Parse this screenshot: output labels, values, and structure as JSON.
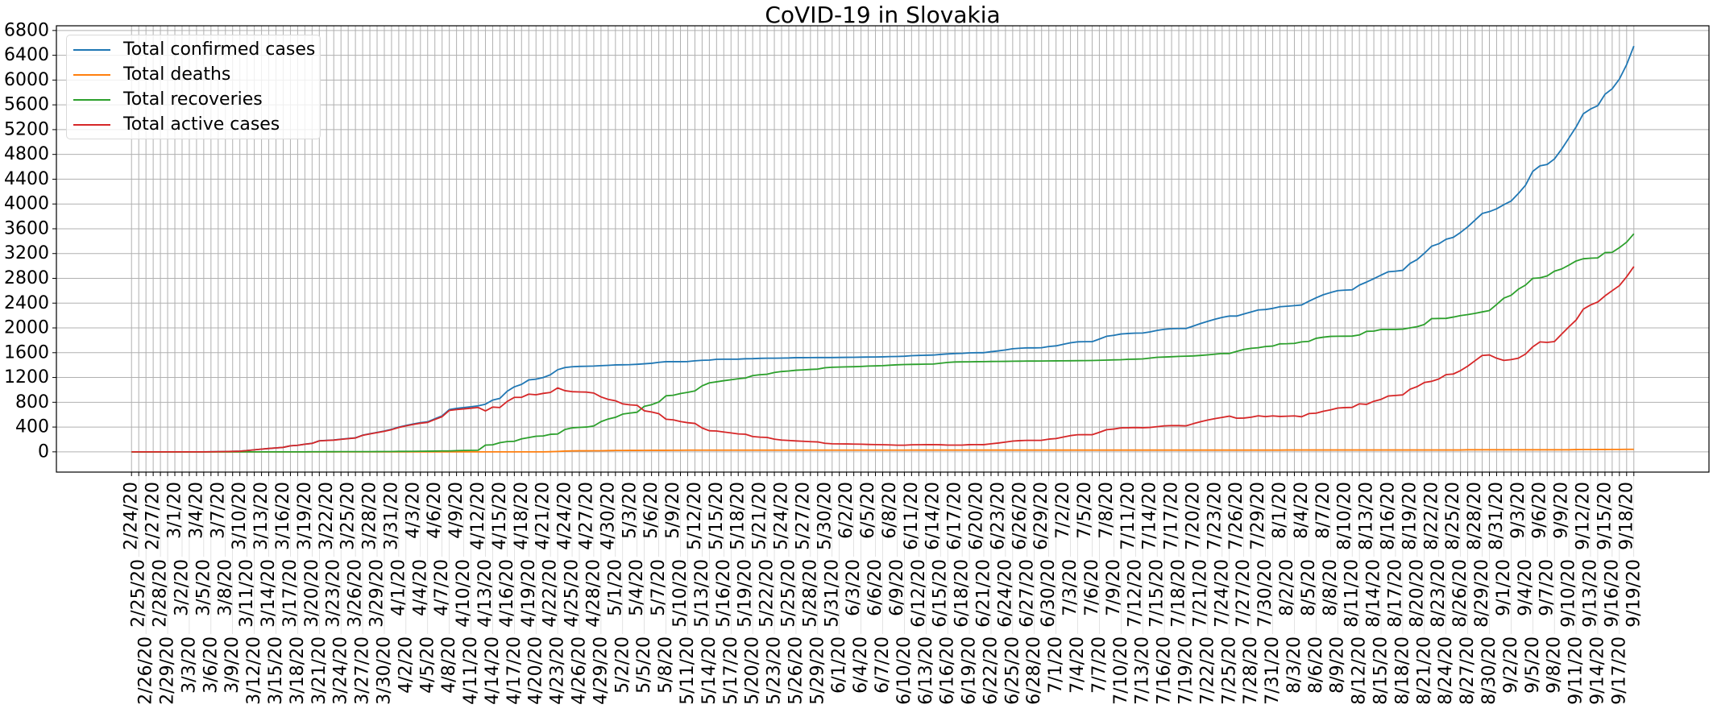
{
  "chart_data": {
    "type": "line",
    "title": "CoVID-19 in Slovakia",
    "xlabel": "",
    "ylabel": "",
    "ylim": [
      -327,
      6876
    ],
    "yticks": [
      0,
      400,
      800,
      1200,
      1600,
      2000,
      2400,
      2800,
      3200,
      3600,
      4000,
      4400,
      4800,
      5200,
      5600,
      6000,
      6400,
      6800
    ],
    "grid": true,
    "legend_position": "top-left",
    "categories": [
      "2/24/20",
      "2/25/20",
      "2/26/20",
      "2/27/20",
      "2/28/20",
      "2/29/20",
      "3/1/20",
      "3/2/20",
      "3/3/20",
      "3/4/20",
      "3/5/20",
      "3/6/20",
      "3/7/20",
      "3/8/20",
      "3/9/20",
      "3/10/20",
      "3/11/20",
      "3/12/20",
      "3/13/20",
      "3/14/20",
      "3/15/20",
      "3/16/20",
      "3/17/20",
      "3/18/20",
      "3/19/20",
      "3/20/20",
      "3/21/20",
      "3/22/20",
      "3/23/20",
      "3/24/20",
      "3/25/20",
      "3/26/20",
      "3/27/20",
      "3/28/20",
      "3/29/20",
      "3/30/20",
      "3/31/20",
      "4/1/20",
      "4/2/20",
      "4/3/20",
      "4/4/20",
      "4/5/20",
      "4/6/20",
      "4/7/20",
      "4/8/20",
      "4/9/20",
      "4/10/20",
      "4/11/20",
      "4/12/20",
      "4/13/20",
      "4/14/20",
      "4/15/20",
      "4/16/20",
      "4/17/20",
      "4/18/20",
      "4/19/20",
      "4/20/20",
      "4/21/20",
      "4/22/20",
      "4/23/20",
      "4/24/20",
      "4/25/20",
      "4/26/20",
      "4/27/20",
      "4/28/20",
      "4/29/20",
      "4/30/20",
      "5/1/20",
      "5/2/20",
      "5/3/20",
      "5/4/20",
      "5/5/20",
      "5/6/20",
      "5/7/20",
      "5/8/20",
      "5/9/20",
      "5/10/20",
      "5/11/20",
      "5/12/20",
      "5/13/20",
      "5/14/20",
      "5/15/20",
      "5/16/20",
      "5/17/20",
      "5/18/20",
      "5/19/20",
      "5/20/20",
      "5/21/20",
      "5/22/20",
      "5/23/20",
      "5/24/20",
      "5/25/20",
      "5/26/20",
      "5/27/20",
      "5/28/20",
      "5/29/20",
      "5/30/20",
      "5/31/20",
      "6/1/20",
      "6/2/20",
      "6/3/20",
      "6/4/20",
      "6/5/20",
      "6/6/20",
      "6/7/20",
      "6/8/20",
      "6/9/20",
      "6/10/20",
      "6/11/20",
      "6/12/20",
      "6/13/20",
      "6/14/20",
      "6/15/20",
      "6/16/20",
      "6/17/20",
      "6/18/20",
      "6/19/20",
      "6/20/20",
      "6/21/20",
      "6/22/20",
      "6/23/20",
      "6/24/20",
      "6/25/20",
      "6/26/20",
      "6/27/20",
      "6/28/20",
      "6/29/20",
      "6/30/20",
      "7/1/20",
      "7/2/20",
      "7/3/20",
      "7/4/20",
      "7/5/20",
      "7/6/20",
      "7/7/20",
      "7/8/20",
      "7/9/20",
      "7/10/20",
      "7/11/20",
      "7/12/20",
      "7/13/20",
      "7/14/20",
      "7/15/20",
      "7/16/20",
      "7/17/20",
      "7/18/20",
      "7/19/20",
      "7/20/20",
      "7/21/20",
      "7/22/20",
      "7/23/20",
      "7/24/20",
      "7/25/20",
      "7/26/20",
      "7/27/20",
      "7/28/20",
      "7/29/20",
      "7/30/20",
      "7/31/20",
      "8/1/20",
      "8/2/20",
      "8/3/20",
      "8/4/20",
      "8/5/20",
      "8/6/20",
      "8/7/20",
      "8/8/20",
      "8/9/20",
      "8/10/20",
      "8/11/20",
      "8/12/20",
      "8/13/20",
      "8/14/20",
      "8/15/20",
      "8/16/20",
      "8/17/20",
      "8/18/20",
      "8/19/20",
      "8/20/20",
      "8/21/20",
      "8/22/20",
      "8/23/20",
      "8/24/20",
      "8/25/20",
      "8/26/20",
      "8/27/20",
      "8/28/20",
      "8/29/20",
      "8/30/20",
      "8/31/20",
      "9/1/20",
      "9/2/20",
      "9/3/20",
      "9/4/20",
      "9/5/20",
      "9/6/20",
      "9/7/20",
      "9/8/20",
      "9/9/20",
      "9/10/20",
      "9/11/20",
      "9/12/20",
      "9/13/20",
      "9/14/20",
      "9/15/20",
      "9/16/20",
      "9/17/20",
      "9/18/20",
      "9/19/20"
    ],
    "series": [
      {
        "name": "Total confirmed cases",
        "color": "#1f77b4",
        "values": [
          0,
          0,
          0,
          0,
          0,
          0,
          0,
          0,
          0,
          0,
          0,
          1,
          3,
          5,
          7,
          10,
          21,
          32,
          44,
          54,
          63,
          72,
          97,
          105,
          123,
          137,
          178,
          185,
          191,
          204,
          216,
          226,
          269,
          292,
          314,
          336,
          363,
          400,
          426,
          450,
          471,
          485,
          534,
          581,
          682,
          701,
          715,
          728,
          742,
          769,
          835,
          863,
          977,
          1049,
          1089,
          1161,
          1173,
          1199,
          1244,
          1325,
          1360,
          1373,
          1379,
          1381,
          1384,
          1391,
          1396,
          1403,
          1405,
          1407,
          1413,
          1421,
          1429,
          1445,
          1455,
          1455,
          1455,
          1457,
          1469,
          1477,
          1480,
          1493,
          1495,
          1495,
          1496,
          1502,
          1504,
          1509,
          1511,
          1511,
          1513,
          1515,
          1520,
          1520,
          1521,
          1522,
          1522,
          1522,
          1523,
          1525,
          1526,
          1528,
          1530,
          1531,
          1533,
          1537,
          1539,
          1543,
          1552,
          1556,
          1559,
          1562,
          1572,
          1580,
          1587,
          1589,
          1597,
          1600,
          1600,
          1616,
          1629,
          1645,
          1664,
          1672,
          1678,
          1678,
          1680,
          1700,
          1710,
          1736,
          1760,
          1775,
          1778,
          1778,
          1820,
          1865,
          1880,
          1902,
          1910,
          1916,
          1917,
          1935,
          1960,
          1977,
          1987,
          1991,
          1991,
          2030,
          2070,
          2106,
          2140,
          2170,
          2191,
          2191,
          2225,
          2257,
          2290,
          2297,
          2315,
          2342,
          2350,
          2360,
          2370,
          2430,
          2486,
          2535,
          2570,
          2602,
          2610,
          2615,
          2691,
          2740,
          2794,
          2852,
          2906,
          2915,
          2929,
          3040,
          3103,
          3205,
          3318,
          3358,
          3430,
          3461,
          3540,
          3631,
          3738,
          3846,
          3877,
          3922,
          3989,
          4047,
          4168,
          4302,
          4526,
          4615,
          4638,
          4727,
          4884,
          5063,
          5242,
          5456,
          5532,
          5586,
          5770,
          5859,
          6016,
          6249,
          6549
        ]
      },
      {
        "name": "Total deaths",
        "color": "#ff7f0e",
        "values": [
          0,
          0,
          0,
          0,
          0,
          0,
          0,
          0,
          0,
          0,
          0,
          0,
          0,
          0,
          0,
          0,
          0,
          0,
          0,
          0,
          0,
          0,
          0,
          0,
          0,
          0,
          0,
          0,
          0,
          0,
          0,
          0,
          0,
          0,
          0,
          0,
          0,
          0,
          0,
          0,
          0,
          0,
          0,
          0,
          0,
          0,
          0,
          0,
          0,
          0,
          0,
          0,
          0,
          0,
          0,
          0,
          0,
          0,
          2,
          6,
          12,
          15,
          17,
          17,
          18,
          18,
          20,
          22,
          22,
          23,
          23,
          24,
          25,
          25,
          25,
          26,
          26,
          27,
          27,
          27,
          27,
          27,
          27,
          27,
          27,
          27,
          27,
          27,
          27,
          27,
          27,
          27,
          27,
          27,
          27,
          27,
          27,
          27,
          27,
          27,
          27,
          27,
          27,
          27,
          27,
          27,
          27,
          27,
          28,
          28,
          28,
          28,
          28,
          28,
          28,
          28,
          28,
          28,
          28,
          28,
          28,
          28,
          28,
          28,
          28,
          28,
          28,
          28,
          28,
          28,
          28,
          28,
          28,
          28,
          28,
          28,
          28,
          28,
          28,
          28,
          28,
          28,
          28,
          28,
          28,
          28,
          28,
          28,
          28,
          28,
          28,
          28,
          28,
          28,
          28,
          28,
          28,
          28,
          28,
          28,
          30,
          30,
          30,
          30,
          30,
          30,
          30,
          30,
          30,
          30,
          30,
          30,
          30,
          30,
          30,
          30,
          30,
          30,
          30,
          30,
          30,
          30,
          30,
          30,
          30,
          33,
          33,
          33,
          33,
          33,
          33,
          33,
          33,
          33,
          33,
          33,
          33,
          33,
          33,
          33,
          36,
          37,
          37,
          38,
          38,
          39,
          39,
          40,
          40
        ]
      },
      {
        "name": "Total recoveries",
        "color": "#2ca02c",
        "values": [
          0,
          0,
          0,
          0,
          0,
          0,
          0,
          0,
          0,
          0,
          0,
          0,
          0,
          0,
          0,
          0,
          0,
          0,
          0,
          0,
          0,
          0,
          0,
          0,
          0,
          1,
          1,
          2,
          2,
          3,
          3,
          3,
          3,
          3,
          4,
          5,
          5,
          7,
          7,
          8,
          9,
          10,
          12,
          14,
          14,
          19,
          22,
          24,
          26,
          109,
          113,
          148,
          165,
          170,
          209,
          230,
          252,
          256,
          283,
          287,
          361,
          387,
          395,
          400,
          417,
          487,
          530,
          557,
          609,
          625,
          639,
          735,
          761,
          804,
          904,
          913,
          940,
          960,
          983,
          1065,
          1113,
          1130,
          1148,
          1163,
          1180,
          1191,
          1230,
          1245,
          1252,
          1280,
          1296,
          1305,
          1317,
          1323,
          1330,
          1335,
          1357,
          1365,
          1368,
          1371,
          1374,
          1378,
          1384,
          1387,
          1391,
          1398,
          1405,
          1409,
          1411,
          1413,
          1415,
          1417,
          1430,
          1443,
          1450,
          1452,
          1453,
          1455,
          1456,
          1458,
          1459,
          1460,
          1462,
          1463,
          1465,
          1465,
          1466,
          1467,
          1468,
          1469,
          1470,
          1471,
          1472,
          1474,
          1477,
          1480,
          1484,
          1487,
          1493,
          1496,
          1500,
          1513,
          1526,
          1530,
          1535,
          1540,
          1544,
          1548,
          1556,
          1565,
          1576,
          1587,
          1587,
          1620,
          1652,
          1670,
          1680,
          1700,
          1707,
          1743,
          1745,
          1750,
          1774,
          1783,
          1832,
          1850,
          1863,
          1865,
          1866,
          1868,
          1886,
          1944,
          1948,
          1975,
          1975,
          1975,
          1980,
          2000,
          2020,
          2056,
          2150,
          2152,
          2154,
          2175,
          2199,
          2215,
          2235,
          2258,
          2280,
          2378,
          2481,
          2526,
          2624,
          2691,
          2799,
          2808,
          2839,
          2915,
          2951,
          3013,
          3080,
          3116,
          3125,
          3130,
          3215,
          3219,
          3295,
          3384,
          3519
        ]
      },
      {
        "name": "Total active cases",
        "color": "#d62728",
        "values": [
          0,
          0,
          0,
          0,
          0,
          0,
          0,
          0,
          0,
          0,
          0,
          1,
          3,
          5,
          7,
          10,
          21,
          32,
          44,
          54,
          63,
          72,
          97,
          105,
          123,
          136,
          177,
          183,
          189,
          201,
          213,
          223,
          266,
          289,
          310,
          331,
          358,
          393,
          419,
          442,
          462,
          475,
          522,
          567,
          668,
          682,
          693,
          704,
          716,
          660,
          722,
          715,
          812,
          879,
          880,
          931,
          921,
          943,
          959,
          1032,
          987,
          971,
          967,
          964,
          949,
          886,
          846,
          824,
          774,
          759,
          751,
          662,
          643,
          616,
          526,
          516,
          489,
          470,
          459,
          385,
          340,
          336,
          320,
          305,
          289,
          284,
          247,
          237,
          232,
          204,
          190,
          183,
          176,
          170,
          164,
          160,
          138,
          130,
          128,
          127,
          125,
          123,
          119,
          117,
          115,
          112,
          107,
          107,
          113,
          115,
          116,
          117,
          114,
          109,
          109,
          109,
          116,
          117,
          116,
          130,
          142,
          157,
          174,
          181,
          185,
          185,
          186,
          205,
          214,
          239,
          262,
          276,
          278,
          276,
          315,
          357,
          368,
          387,
          389,
          392,
          389,
          394,
          406,
          419,
          424,
          423,
          419,
          454,
          486,
          513,
          536,
          555,
          576,
          543,
          545,
          559,
          582,
          569,
          580,
          571,
          575,
          580,
          566,
          617,
          624,
          655,
          677,
          707,
          714,
          717,
          775,
          766,
          816,
          847,
          901,
          910,
          919,
          1010,
          1053,
          1119,
          1138,
          1176,
          1246,
          1256,
          1311,
          1383,
          1470,
          1555,
          1564,
          1511,
          1475,
          1488,
          1511,
          1578,
          1694,
          1774,
          1766,
          1779,
          1900,
          2017,
          2126,
          2303,
          2370,
          2418,
          2517,
          2601,
          2682,
          2825,
          2990
        ]
      }
    ]
  }
}
